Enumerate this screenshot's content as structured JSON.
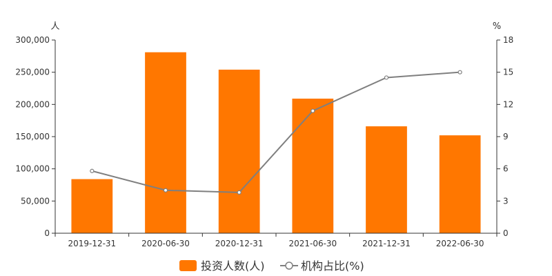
{
  "chart_data": {
    "type": "bar",
    "categories": [
      "2019-12-31",
      "2020-06-30",
      "2020-12-31",
      "2021-06-30",
      "2021-12-31",
      "2022-06-30"
    ],
    "series": [
      {
        "name": "投资人数(人)",
        "type": "bar",
        "axis": "left",
        "color": "#ff7700",
        "values": [
          84000,
          281000,
          254000,
          209000,
          166000,
          152000
        ]
      },
      {
        "name": "机构占比(%)",
        "type": "line",
        "axis": "right",
        "color": "#7f7f7f",
        "values": [
          5.8,
          4.0,
          3.8,
          11.4,
          14.5,
          15.0
        ]
      }
    ],
    "y_left": {
      "unit": "人",
      "ylim": [
        0,
        300000
      ],
      "ticks": [
        "0",
        "50,000",
        "100,000",
        "150,000",
        "200,000",
        "250,000",
        "300,000"
      ]
    },
    "y_right": {
      "unit": "%",
      "ylim": [
        0,
        18
      ],
      "ticks": [
        "0",
        "3",
        "6",
        "9",
        "12",
        "15",
        "18"
      ]
    },
    "grid": false,
    "legend_position": "bottom-center"
  }
}
